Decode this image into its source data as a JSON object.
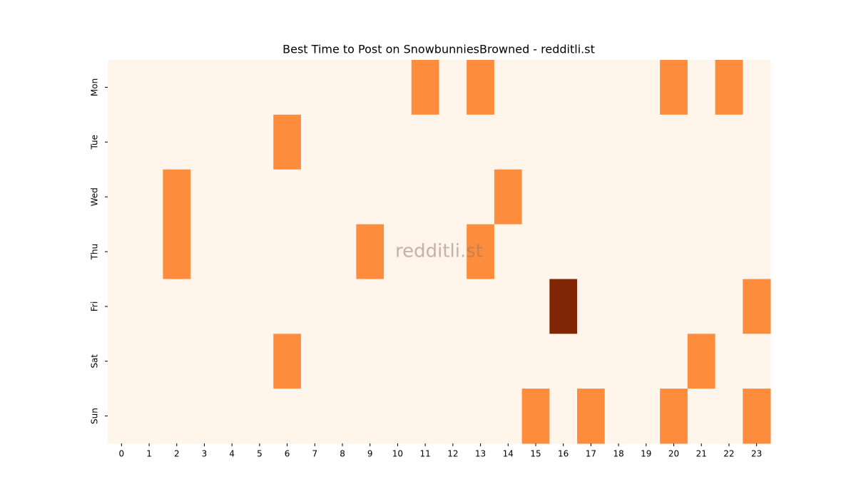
{
  "chart_data": {
    "type": "heatmap",
    "title": "Best Time to Post on SnowbunniesBrowned - redditli.st",
    "watermark": "redditli.st",
    "x": [
      0,
      1,
      2,
      3,
      4,
      5,
      6,
      7,
      8,
      9,
      10,
      11,
      12,
      13,
      14,
      15,
      16,
      17,
      18,
      19,
      20,
      21,
      22,
      23
    ],
    "y": [
      "Mon",
      "Tue",
      "Wed",
      "Thu",
      "Fri",
      "Sat",
      "Sun"
    ],
    "values": [
      [
        0,
        0,
        0,
        0,
        0,
        0,
        0,
        0,
        0,
        0,
        0,
        1,
        0,
        1,
        0,
        0,
        0,
        0,
        0,
        0,
        1,
        0,
        1,
        0
      ],
      [
        0,
        0,
        0,
        0,
        0,
        0,
        1,
        0,
        0,
        0,
        0,
        0,
        0,
        0,
        0,
        0,
        0,
        0,
        0,
        0,
        0,
        0,
        0,
        0
      ],
      [
        0,
        0,
        1,
        0,
        0,
        0,
        0,
        0,
        0,
        0,
        0,
        0,
        0,
        0,
        1,
        0,
        0,
        0,
        0,
        0,
        0,
        0,
        0,
        0
      ],
      [
        0,
        0,
        1,
        0,
        0,
        0,
        0,
        0,
        0,
        1,
        0,
        0,
        0,
        1,
        0,
        0,
        0,
        0,
        0,
        0,
        0,
        0,
        0,
        0
      ],
      [
        0,
        0,
        0,
        0,
        0,
        0,
        0,
        0,
        0,
        0,
        0,
        0,
        0,
        0,
        0,
        0,
        2,
        0,
        0,
        0,
        0,
        0,
        0,
        1
      ],
      [
        0,
        0,
        0,
        0,
        0,
        0,
        1,
        0,
        0,
        0,
        0,
        0,
        0,
        0,
        0,
        0,
        0,
        0,
        0,
        0,
        0,
        1,
        0,
        0
      ],
      [
        0,
        0,
        0,
        0,
        0,
        0,
        0,
        0,
        0,
        0,
        0,
        0,
        0,
        0,
        0,
        1,
        0,
        1,
        0,
        0,
        1,
        0,
        0,
        1
      ]
    ],
    "zlim": [
      0,
      2
    ],
    "colormap": [
      "#fff5eb",
      "#fd8d3c",
      "#7f2704"
    ]
  }
}
